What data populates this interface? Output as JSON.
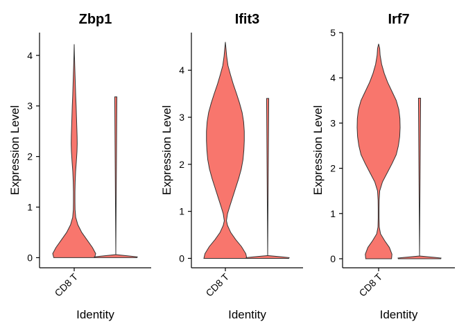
{
  "chart_data": [
    {
      "type": "violin",
      "title": "Zbp1",
      "xlabel": "Identity",
      "ylabel": "Expression Level",
      "categories": [
        "CD8 T"
      ],
      "ylim": [
        -0.2,
        4.45
      ],
      "yticks": [
        0,
        1,
        2,
        3,
        4
      ],
      "fill_color": "#F8766D",
      "outline_color": "#333333",
      "violin": {
        "max": 4.22,
        "profile": [
          [
            0,
            0.95
          ],
          [
            0.08,
            1.0
          ],
          [
            0.2,
            0.85
          ],
          [
            0.35,
            0.6
          ],
          [
            0.5,
            0.35
          ],
          [
            0.65,
            0.17
          ],
          [
            0.8,
            0.07
          ],
          [
            0.95,
            0.04
          ],
          [
            1.1,
            0.035
          ],
          [
            1.3,
            0.035
          ],
          [
            1.5,
            0.045
          ],
          [
            1.7,
            0.065
          ],
          [
            1.9,
            0.1
          ],
          [
            2.1,
            0.13
          ],
          [
            2.25,
            0.14
          ],
          [
            2.4,
            0.135
          ],
          [
            2.6,
            0.12
          ],
          [
            2.8,
            0.105
          ],
          [
            3.0,
            0.09
          ],
          [
            3.2,
            0.07
          ],
          [
            3.4,
            0.055
          ],
          [
            3.6,
            0.04
          ],
          [
            3.8,
            0.025
          ],
          [
            4.0,
            0.012
          ],
          [
            4.22,
            0
          ]
        ]
      },
      "secondary": {
        "min": 0,
        "max": 3.18,
        "base": [
          [
            0,
            0.985
          ],
          [
            0.015,
            1
          ],
          [
            0.03,
            0.7
          ],
          [
            0.06,
            0
          ]
        ],
        "tail_half_width": 0.005
      }
    },
    {
      "type": "violin",
      "title": "Ifit3",
      "xlabel": "Identity",
      "ylabel": "Expression Level",
      "categories": [
        "CD8 T"
      ],
      "ylim": [
        -0.2,
        4.8
      ],
      "yticks": [
        0,
        1,
        2,
        3,
        4
      ],
      "fill_color": "#F8766D",
      "outline_color": "#333333",
      "violin": {
        "max": 4.6,
        "profile": [
          [
            0,
            1.0
          ],
          [
            0.1,
            0.95
          ],
          [
            0.25,
            0.75
          ],
          [
            0.4,
            0.48
          ],
          [
            0.55,
            0.25
          ],
          [
            0.7,
            0.1
          ],
          [
            0.8,
            0.05
          ],
          [
            0.95,
            0.1
          ],
          [
            1.1,
            0.2
          ],
          [
            1.3,
            0.34
          ],
          [
            1.5,
            0.48
          ],
          [
            1.7,
            0.62
          ],
          [
            1.9,
            0.74
          ],
          [
            2.1,
            0.82
          ],
          [
            2.3,
            0.86
          ],
          [
            2.5,
            0.88
          ],
          [
            2.7,
            0.88
          ],
          [
            2.9,
            0.85
          ],
          [
            3.1,
            0.78
          ],
          [
            3.3,
            0.66
          ],
          [
            3.5,
            0.52
          ],
          [
            3.7,
            0.37
          ],
          [
            3.9,
            0.24
          ],
          [
            4.1,
            0.12
          ],
          [
            4.3,
            0.06
          ],
          [
            4.45,
            0.03
          ],
          [
            4.6,
            0
          ]
        ]
      },
      "secondary": {
        "min": 0,
        "max": 3.4,
        "base": [
          [
            0,
            0.98
          ],
          [
            0.015,
            1
          ],
          [
            0.03,
            0.7
          ],
          [
            0.06,
            0
          ]
        ],
        "tail_half_width": 0.005
      }
    },
    {
      "type": "violin",
      "title": "Irf7",
      "xlabel": "Identity",
      "ylabel": "Expression Level",
      "categories": [
        "CD8 T"
      ],
      "ylim": [
        -0.2,
        5.0
      ],
      "yticks": [
        0,
        1,
        2,
        3,
        4,
        5
      ],
      "fill_color": "#F8766D",
      "outline_color": "#333333",
      "violin": {
        "max": 4.75,
        "profile": [
          [
            0,
            0.6
          ],
          [
            0.1,
            0.62
          ],
          [
            0.25,
            0.5
          ],
          [
            0.4,
            0.28
          ],
          [
            0.55,
            0.09
          ],
          [
            0.7,
            0.03
          ],
          [
            0.9,
            0.02
          ],
          [
            1.1,
            0.02
          ],
          [
            1.3,
            0.025
          ],
          [
            1.5,
            0.05
          ],
          [
            1.7,
            0.18
          ],
          [
            1.9,
            0.4
          ],
          [
            2.1,
            0.62
          ],
          [
            2.3,
            0.82
          ],
          [
            2.5,
            0.92
          ],
          [
            2.7,
            0.98
          ],
          [
            2.9,
            1.0
          ],
          [
            3.1,
            0.99
          ],
          [
            3.3,
            0.94
          ],
          [
            3.5,
            0.82
          ],
          [
            3.7,
            0.62
          ],
          [
            3.9,
            0.42
          ],
          [
            4.1,
            0.26
          ],
          [
            4.3,
            0.14
          ],
          [
            4.5,
            0.07
          ],
          [
            4.65,
            0.05
          ],
          [
            4.75,
            0
          ]
        ]
      },
      "secondary": {
        "min": 0,
        "max": 3.55,
        "base": [
          [
            0,
            0.99
          ],
          [
            0.015,
            1
          ],
          [
            0.03,
            0.7
          ],
          [
            0.06,
            0
          ]
        ],
        "tail_half_width": 0.005
      }
    }
  ]
}
